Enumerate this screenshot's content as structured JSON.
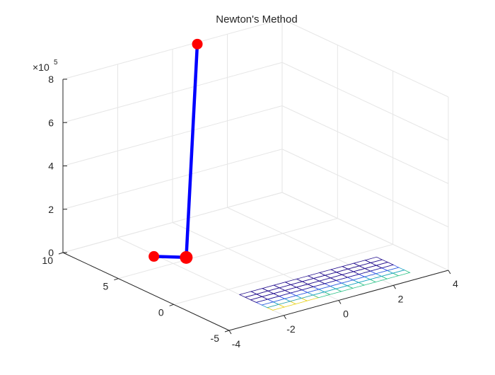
{
  "chart_data": {
    "type": "line",
    "projection": "3d",
    "title": "Newton's Method",
    "xlabel": "",
    "ylabel": "",
    "zlabel": "",
    "xlim": [
      -4,
      4
    ],
    "ylim": [
      -5,
      10
    ],
    "zlim": [
      0,
      800000
    ],
    "xticks": [
      -4,
      -2,
      0,
      2,
      4
    ],
    "yticks": [
      -5,
      0,
      5,
      10
    ],
    "zticks": [
      0,
      200000,
      400000,
      600000,
      800000
    ],
    "xtick_labels": [
      "-4",
      "-2",
      "0",
      "2",
      "4"
    ],
    "ytick_labels": [
      "-5",
      "0",
      "5",
      "10"
    ],
    "ztick_labels": [
      "0",
      "2",
      "4",
      "6",
      "8"
    ],
    "z_exponent": {
      "base": "×10",
      "power": "5"
    },
    "grid": true,
    "series": [
      {
        "kind": "line-with-markers",
        "color": "#0000ff",
        "marker_color": "#ff0000",
        "x": [
          -2.5,
          -1.4,
          0.5
        ],
        "y": [
          5.5,
          5.3,
          9.0
        ],
        "z": [
          38000,
          0,
          830000
        ]
      }
    ],
    "surface": {
      "kind": "mesh",
      "x_range": [
        -2,
        3
      ],
      "y_range": [
        -4,
        -1
      ],
      "x_count": 13,
      "y_count": 7,
      "colors": [
        "#26118f",
        "#3a57e6",
        "#1fa3c9",
        "#2fc28a",
        "#e8d11a"
      ]
    }
  }
}
